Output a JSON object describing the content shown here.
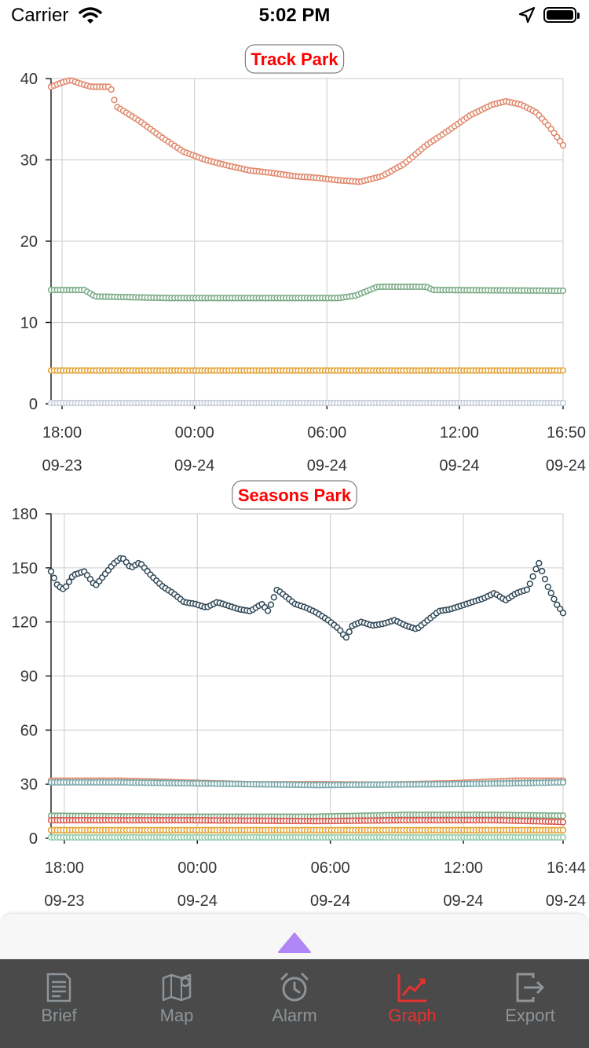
{
  "status_bar": {
    "carrier": "Carrier",
    "time": "5:02 PM"
  },
  "tabs": [
    {
      "label": "Brief",
      "icon": "document-icon",
      "active": false
    },
    {
      "label": "Map",
      "icon": "map-icon",
      "active": false
    },
    {
      "label": "Alarm",
      "icon": "alarm-clock-icon",
      "active": false
    },
    {
      "label": "Graph",
      "icon": "line-chart-icon",
      "active": true
    },
    {
      "label": "Export",
      "icon": "export-icon",
      "active": false
    }
  ],
  "colors": {
    "title_red": "#ff0000",
    "tab_active": "#e6322f",
    "tab_inactive": "#8e9498",
    "tab_bar_bg": "#4a4a4a",
    "handle_purple": "#b085f5"
  },
  "chart_data": [
    {
      "type": "line",
      "title": "Track Park",
      "ylim": [
        0,
        40
      ],
      "yticks": [
        0,
        10,
        20,
        30,
        40
      ],
      "x_range_hours": [
        0,
        23.2
      ],
      "xticks": [
        {
          "t": 0.5,
          "time": "18:00",
          "date": "09-23"
        },
        {
          "t": 6.5,
          "time": "00:00",
          "date": "09-24"
        },
        {
          "t": 12.5,
          "time": "06:00",
          "date": "09-24"
        },
        {
          "t": 18.5,
          "time": "12:00",
          "date": "09-24"
        },
        {
          "t": 23.2,
          "time": "16:50",
          "date": "09-24"
        }
      ],
      "grid": true,
      "series": [
        {
          "color": "#e0876a",
          "points": [
            [
              0,
              39
            ],
            [
              0.3,
              39.3
            ],
            [
              0.6,
              39.6
            ],
            [
              0.9,
              39.8
            ],
            [
              1.3,
              39.4
            ],
            [
              1.8,
              39
            ],
            [
              2.7,
              39
            ],
            [
              2.8,
              37.8
            ],
            [
              3,
              36.5
            ],
            [
              4,
              34.8
            ],
            [
              5,
              32.8
            ],
            [
              6,
              31
            ],
            [
              7,
              30
            ],
            [
              8,
              29.3
            ],
            [
              9,
              28.7
            ],
            [
              10,
              28.4
            ],
            [
              11,
              28
            ],
            [
              12,
              27.8
            ],
            [
              13,
              27.5
            ],
            [
              14,
              27.3
            ],
            [
              15,
              28
            ],
            [
              16,
              29.5
            ],
            [
              17,
              31.8
            ],
            [
              18,
              33.6
            ],
            [
              19,
              35.5
            ],
            [
              20,
              36.8
            ],
            [
              20.6,
              37.2
            ],
            [
              21.3,
              36.8
            ],
            [
              22,
              35.8
            ],
            [
              22.6,
              34
            ],
            [
              23.2,
              31.8
            ]
          ]
        },
        {
          "color": "#7aab86",
          "points": [
            [
              0,
              14
            ],
            [
              1.5,
              14
            ],
            [
              2,
              13.2
            ],
            [
              5.5,
              13
            ],
            [
              10,
              13
            ],
            [
              13,
              13
            ],
            [
              13.8,
              13.3
            ],
            [
              14.8,
              14.4
            ],
            [
              17,
              14.4
            ],
            [
              17.3,
              14
            ],
            [
              23.2,
              13.9
            ]
          ]
        },
        {
          "color": "#e3a030",
          "points": [
            [
              0,
              4.1
            ],
            [
              23.2,
              4.1
            ]
          ]
        },
        {
          "color": "#c5cdd6",
          "points": [
            [
              0,
              0.1
            ],
            [
              23.2,
              0.1
            ]
          ]
        }
      ]
    },
    {
      "type": "line",
      "title": "Seasons Park",
      "ylim": [
        0,
        180
      ],
      "yticks": [
        0,
        30,
        60,
        90,
        120,
        150,
        180
      ],
      "x_range_hours": [
        0,
        23.1
      ],
      "xticks": [
        {
          "t": 0.6,
          "time": "18:00",
          "date": "09-23"
        },
        {
          "t": 6.6,
          "time": "00:00",
          "date": "09-24"
        },
        {
          "t": 12.6,
          "time": "06:00",
          "date": "09-24"
        },
        {
          "t": 18.6,
          "time": "12:00",
          "date": "09-24"
        },
        {
          "t": 23.1,
          "time": "16:44",
          "date": "09-24"
        }
      ],
      "grid": true,
      "series": [
        {
          "color": "#2f4857",
          "points": [
            [
              0,
              148
            ],
            [
              0.3,
              140
            ],
            [
              0.6,
              138
            ],
            [
              1,
              146
            ],
            [
              1.5,
              148
            ],
            [
              2,
              140
            ],
            [
              2.4,
              146
            ],
            [
              2.8,
              152
            ],
            [
              3.2,
              156
            ],
            [
              3.6,
              150
            ],
            [
              4,
              153
            ],
            [
              4.5,
              146
            ],
            [
              5,
              140
            ],
            [
              5.5,
              136
            ],
            [
              6,
              131
            ],
            [
              6.5,
              130
            ],
            [
              7,
              128
            ],
            [
              7.5,
              131
            ],
            [
              8,
              129
            ],
            [
              8.5,
              127
            ],
            [
              9,
              126
            ],
            [
              9.5,
              130
            ],
            [
              9.8,
              126
            ],
            [
              10.2,
              138
            ],
            [
              10.6,
              134
            ],
            [
              11,
              130
            ],
            [
              11.5,
              128
            ],
            [
              12,
              125
            ],
            [
              12.5,
              121
            ],
            [
              13,
              116
            ],
            [
              13.3,
              111
            ],
            [
              13.6,
              118
            ],
            [
              14,
              120
            ],
            [
              14.5,
              118
            ],
            [
              15,
              119
            ],
            [
              15.5,
              121
            ],
            [
              16,
              118
            ],
            [
              16.5,
              116
            ],
            [
              17,
              121
            ],
            [
              17.5,
              126
            ],
            [
              18,
              127
            ],
            [
              18.5,
              129
            ],
            [
              19,
              131
            ],
            [
              19.5,
              133
            ],
            [
              20,
              136
            ],
            [
              20.5,
              132
            ],
            [
              21,
              136
            ],
            [
              21.5,
              138
            ],
            [
              22,
              153
            ],
            [
              22.4,
              140
            ],
            [
              22.8,
              130
            ],
            [
              23.1,
              125
            ]
          ]
        },
        {
          "color": "#e0876a",
          "points": [
            [
              0,
              32
            ],
            [
              3,
              32
            ],
            [
              6,
              31
            ],
            [
              9,
              30
            ],
            [
              12,
              30
            ],
            [
              15,
              29.8
            ],
            [
              18,
              30.5
            ],
            [
              21,
              32
            ],
            [
              23.1,
              32
            ]
          ]
        },
        {
          "color": "#77a6aa",
          "points": [
            [
              0,
              31
            ],
            [
              3,
              31
            ],
            [
              6,
              30.5
            ],
            [
              12,
              29.5
            ],
            [
              18,
              30
            ],
            [
              21,
              30.5
            ],
            [
              23.1,
              31
            ]
          ]
        },
        {
          "color": "#7aab86",
          "points": [
            [
              0,
              12.5
            ],
            [
              5,
              12
            ],
            [
              12,
              12
            ],
            [
              16,
              13
            ],
            [
              20,
              13
            ],
            [
              23.1,
              12.5
            ]
          ]
        },
        {
          "color": "#d9564a",
          "points": [
            [
              0,
              10
            ],
            [
              6,
              10
            ],
            [
              12,
              9.5
            ],
            [
              16,
              10
            ],
            [
              20,
              10
            ],
            [
              23.1,
              9
            ]
          ]
        },
        {
          "color": "#e3a030",
          "points": [
            [
              0,
              4.5
            ],
            [
              23.1,
              4.5
            ]
          ]
        },
        {
          "color": "#8fcaa8",
          "points": [
            [
              0,
              0.5
            ],
            [
              23.1,
              0.5
            ]
          ]
        }
      ]
    }
  ]
}
